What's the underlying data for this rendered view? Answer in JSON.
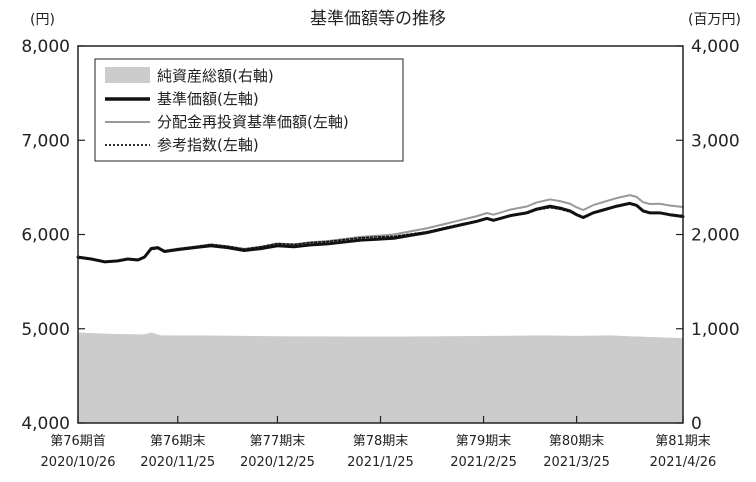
{
  "chart_data": {
    "type": "line",
    "title": "基準価額等の推移",
    "y_left_unit": "(円)",
    "y_right_unit": "(百万円)",
    "y_left_ticks": [
      "8,000",
      "7,000",
      "6,000",
      "5,000",
      "4,000"
    ],
    "y_right_ticks": [
      "4,000",
      "3,000",
      "2,000",
      "1,000",
      "0"
    ],
    "y_left_range": [
      4000,
      8000
    ],
    "y_right_range": [
      0,
      4000
    ],
    "x_ticks": [
      {
        "label1": "第76期首",
        "label2": "2020/10/26",
        "t": 0
      },
      {
        "label1": "第76期末",
        "label2": "2020/11/25",
        "t": 30
      },
      {
        "label1": "第77期末",
        "label2": "2020/12/25",
        "t": 60
      },
      {
        "label1": "第78期末",
        "label2": "2021/1/25",
        "t": 91
      },
      {
        "label1": "第79期末",
        "label2": "2021/2/25",
        "t": 122
      },
      {
        "label1": "第80期末",
        "label2": "2021/3/25",
        "t": 150
      },
      {
        "label1": "第81期末",
        "label2": "2021/4/26",
        "t": 182
      }
    ],
    "x_range": [
      0,
      182
    ],
    "legend": {
      "position": "top-left",
      "entries": [
        {
          "label": "純資産総額(右軸)",
          "style": "area",
          "color": "#cccccc"
        },
        {
          "label": "基準価額(左軸)",
          "style": "thick",
          "color": "#111111"
        },
        {
          "label": "分配金再投資基準価額(左軸)",
          "style": "thin-gray",
          "color": "#999999"
        },
        {
          "label": "参考指数(左軸)",
          "style": "dotted",
          "color": "#111111"
        }
      ]
    },
    "grid": false,
    "series": [
      {
        "name": "純資産総額(右軸)",
        "axis": "right",
        "points": [
          [
            0,
            960
          ],
          [
            10,
            945
          ],
          [
            20,
            940
          ],
          [
            22,
            960
          ],
          [
            25,
            930
          ],
          [
            40,
            928
          ],
          [
            60,
            920
          ],
          [
            80,
            918
          ],
          [
            100,
            918
          ],
          [
            120,
            923
          ],
          [
            140,
            930
          ],
          [
            150,
            925
          ],
          [
            160,
            930
          ],
          [
            170,
            915
          ],
          [
            182,
            900
          ]
        ]
      },
      {
        "name": "基準価額(左軸)",
        "axis": "left",
        "points": [
          [
            0,
            5760
          ],
          [
            4,
            5740
          ],
          [
            8,
            5710
          ],
          [
            12,
            5720
          ],
          [
            15,
            5740
          ],
          [
            18,
            5730
          ],
          [
            20,
            5760
          ],
          [
            22,
            5850
          ],
          [
            24,
            5860
          ],
          [
            26,
            5820
          ],
          [
            30,
            5840
          ],
          [
            35,
            5860
          ],
          [
            40,
            5880
          ],
          [
            45,
            5860
          ],
          [
            50,
            5830
          ],
          [
            55,
            5850
          ],
          [
            60,
            5880
          ],
          [
            65,
            5870
          ],
          [
            70,
            5890
          ],
          [
            75,
            5900
          ],
          [
            80,
            5920
          ],
          [
            85,
            5940
          ],
          [
            90,
            5950
          ],
          [
            95,
            5960
          ],
          [
            100,
            5990
          ],
          [
            105,
            6020
          ],
          [
            110,
            6060
          ],
          [
            115,
            6100
          ],
          [
            120,
            6140
          ],
          [
            123,
            6170
          ],
          [
            125,
            6150
          ],
          [
            128,
            6180
          ],
          [
            130,
            6200
          ],
          [
            135,
            6230
          ],
          [
            138,
            6270
          ],
          [
            142,
            6300
          ],
          [
            145,
            6280
          ],
          [
            148,
            6250
          ],
          [
            150,
            6210
          ],
          [
            152,
            6180
          ],
          [
            155,
            6230
          ],
          [
            158,
            6260
          ],
          [
            162,
            6300
          ],
          [
            166,
            6330
          ],
          [
            168,
            6310
          ],
          [
            170,
            6250
          ],
          [
            172,
            6230
          ],
          [
            175,
            6230
          ],
          [
            178,
            6210
          ],
          [
            180,
            6200
          ],
          [
            182,
            6190
          ]
        ]
      },
      {
        "name": "分配金再投資基準価額(左軸)",
        "axis": "left",
        "points": [
          [
            0,
            5760
          ],
          [
            4,
            5742
          ],
          [
            8,
            5712
          ],
          [
            12,
            5722
          ],
          [
            15,
            5744
          ],
          [
            18,
            5735
          ],
          [
            20,
            5765
          ],
          [
            22,
            5858
          ],
          [
            24,
            5868
          ],
          [
            26,
            5828
          ],
          [
            30,
            5850
          ],
          [
            35,
            5872
          ],
          [
            40,
            5894
          ],
          [
            45,
            5876
          ],
          [
            50,
            5848
          ],
          [
            55,
            5870
          ],
          [
            60,
            5902
          ],
          [
            65,
            5895
          ],
          [
            70,
            5918
          ],
          [
            75,
            5930
          ],
          [
            80,
            5952
          ],
          [
            85,
            5975
          ],
          [
            90,
            5987
          ],
          [
            95,
            6000
          ],
          [
            100,
            6033
          ],
          [
            105,
            6066
          ],
          [
            110,
            6109
          ],
          [
            115,
            6152
          ],
          [
            120,
            6195
          ],
          [
            123,
            6228
          ],
          [
            125,
            6210
          ],
          [
            128,
            6242
          ],
          [
            130,
            6264
          ],
          [
            135,
            6297
          ],
          [
            138,
            6340
          ],
          [
            142,
            6372
          ],
          [
            145,
            6354
          ],
          [
            148,
            6326
          ],
          [
            150,
            6288
          ],
          [
            152,
            6260
          ],
          [
            155,
            6312
          ],
          [
            158,
            6344
          ],
          [
            162,
            6386
          ],
          [
            166,
            6418
          ],
          [
            168,
            6400
          ],
          [
            170,
            6342
          ],
          [
            172,
            6324
          ],
          [
            175,
            6326
          ],
          [
            178,
            6308
          ],
          [
            180,
            6300
          ],
          [
            182,
            6292
          ]
        ]
      },
      {
        "name": "参考指数(左軸)",
        "axis": "left",
        "points": [
          [
            0,
            5750
          ],
          [
            4,
            5735
          ],
          [
            8,
            5705
          ],
          [
            12,
            5718
          ],
          [
            15,
            5738
          ],
          [
            18,
            5728
          ],
          [
            20,
            5758
          ],
          [
            22,
            5840
          ],
          [
            24,
            5850
          ],
          [
            26,
            5815
          ],
          [
            30,
            5848
          ],
          [
            35,
            5870
          ],
          [
            40,
            5895
          ],
          [
            45,
            5875
          ],
          [
            50,
            5845
          ],
          [
            55,
            5870
          ],
          [
            60,
            5905
          ],
          [
            65,
            5895
          ],
          [
            70,
            5915
          ],
          [
            75,
            5925
          ],
          [
            80,
            5945
          ],
          [
            85,
            5965
          ],
          [
            90,
            5975
          ],
          [
            95,
            5980
          ],
          [
            100,
            6005
          ],
          [
            105,
            6030
          ],
          [
            110,
            6070
          ],
          [
            115,
            6110
          ],
          [
            120,
            6145
          ],
          [
            123,
            6170
          ],
          [
            125,
            6150
          ],
          [
            128,
            6178
          ],
          [
            130,
            6195
          ],
          [
            135,
            6222
          ],
          [
            138,
            6260
          ],
          [
            142,
            6285
          ],
          [
            145,
            6268
          ],
          [
            148,
            6240
          ],
          [
            150,
            6205
          ],
          [
            152,
            6178
          ],
          [
            155,
            6228
          ],
          [
            158,
            6258
          ],
          [
            162,
            6298
          ],
          [
            166,
            6328
          ],
          [
            168,
            6308
          ],
          [
            170,
            6252
          ],
          [
            172,
            6232
          ],
          [
            175,
            6232
          ],
          [
            178,
            6215
          ],
          [
            180,
            6208
          ],
          [
            182,
            6200
          ]
        ]
      }
    ]
  }
}
